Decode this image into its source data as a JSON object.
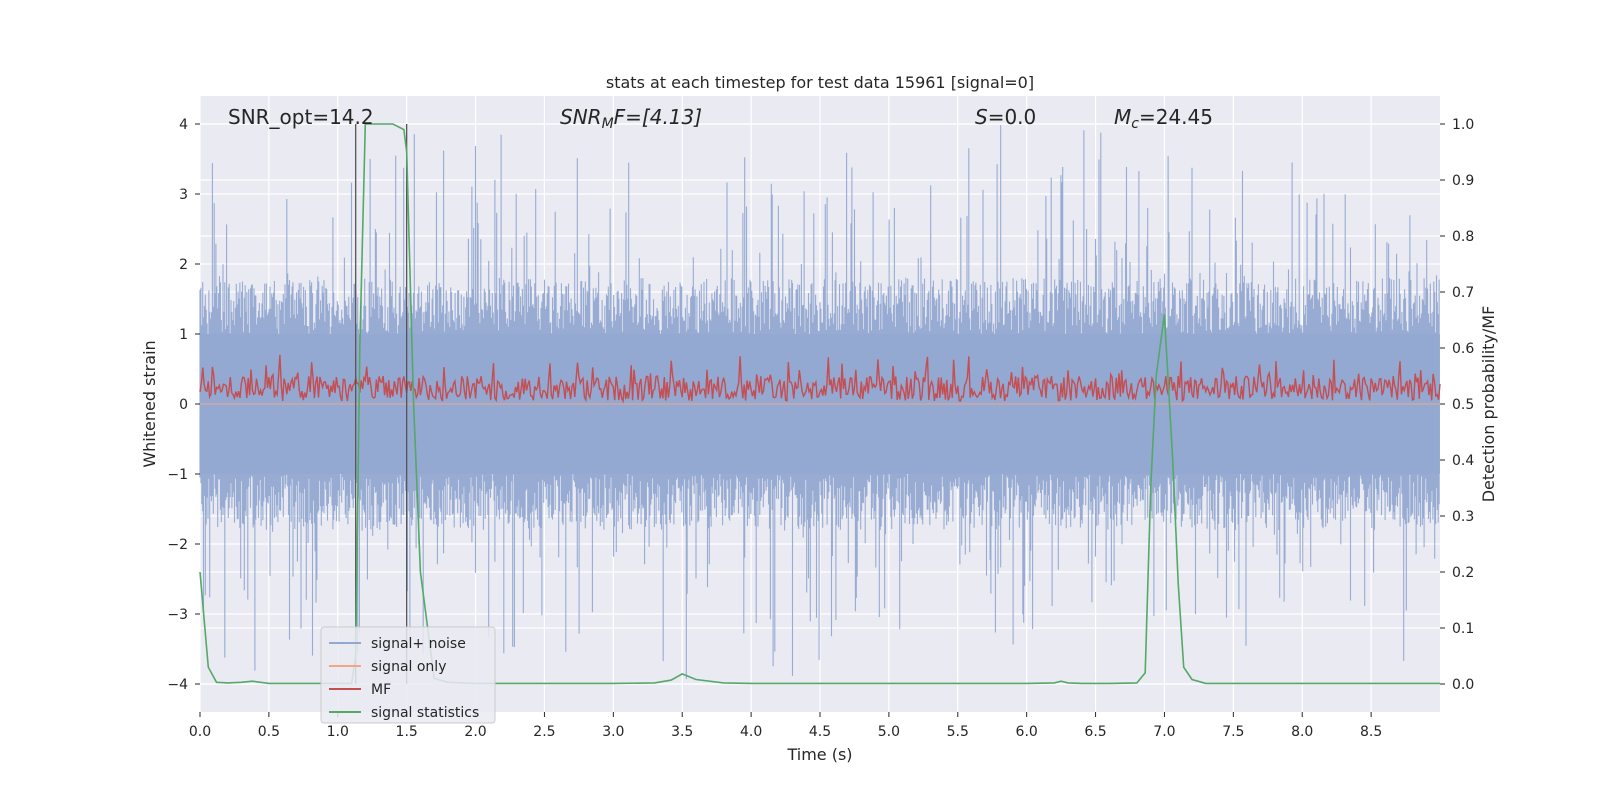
{
  "chart_data": {
    "type": "line",
    "title": "stats at each timestep for test data 15961 [signal=0]",
    "xlabel": "Time (s)",
    "ylabel": "Whitened strain",
    "ylabel_right": "Detection probability/MF",
    "xlim": [
      0.0,
      9.0
    ],
    "ylim": [
      -4.4,
      4.4
    ],
    "ylim_right": [
      -0.05,
      1.05
    ],
    "xticks": [
      "0.0",
      "0.5",
      "1.0",
      "1.5",
      "2.0",
      "2.5",
      "3.0",
      "3.5",
      "4.0",
      "4.5",
      "5.0",
      "5.5",
      "6.0",
      "6.5",
      "7.0",
      "7.5",
      "8.0",
      "8.5"
    ],
    "xtick_values": [
      0.0,
      0.5,
      1.0,
      1.5,
      2.0,
      2.5,
      3.0,
      3.5,
      4.0,
      4.5,
      5.0,
      5.5,
      6.0,
      6.5,
      7.0,
      7.5,
      8.0,
      8.5
    ],
    "yticks": [
      "4",
      "3",
      "2",
      "1",
      "0",
      "−1",
      "−2",
      "−3",
      "−4"
    ],
    "ytick_values": [
      4,
      3,
      2,
      1,
      0,
      -1,
      -2,
      -3,
      -4
    ],
    "yticks_right": [
      "1.0",
      "0.9",
      "0.8",
      "0.7",
      "0.6",
      "0.5",
      "0.4",
      "0.3",
      "0.2",
      "0.1",
      "0.0"
    ],
    "ytick_right_values": [
      1.0,
      0.9,
      0.8,
      0.7,
      0.6,
      0.5,
      0.4,
      0.3,
      0.2,
      0.1,
      0.0
    ],
    "annotations": {
      "snr_opt": "SNR_opt=14.2",
      "snr_mf_main": "SNR",
      "snr_mf_sub": "M",
      "snr_mf_rest": "F=[4.13]",
      "s_sym": "S",
      "s_val": "=0.0",
      "mc_sym": "M",
      "mc_sub": "c",
      "mc_val": "=24.45"
    },
    "vlines_x": [
      1.13,
      1.5
    ],
    "legend": {
      "placement": "lower-left",
      "entries": [
        {
          "label": "signal+ noise",
          "color": "#92a8d1"
        },
        {
          "label": "signal only",
          "color": "#f4a582"
        },
        {
          "label": "MF",
          "color": "#c44e52"
        },
        {
          "label": "signal statistics",
          "color": "#55a868"
        }
      ]
    },
    "series": [
      {
        "name": "signal+ noise",
        "axis": "left",
        "color": "#92a8d1",
        "style": "dense noise, approx ±1.6 core, peaks to ±4"
      },
      {
        "name": "signal only",
        "axis": "left",
        "color": "#f4a582",
        "x": [
          0.0,
          9.0
        ],
        "y": [
          0.0,
          0.0
        ]
      },
      {
        "name": "MF",
        "axis": "right",
        "color": "#c44e52",
        "style": "noisy band approx 0.5–0.6"
      },
      {
        "name": "signal statistics",
        "axis": "right",
        "color": "#55a868",
        "x": [
          0.0,
          0.06,
          0.12,
          0.2,
          0.3,
          0.38,
          0.5,
          0.7,
          0.9,
          1.0,
          1.1,
          1.13,
          1.16,
          1.2,
          1.3,
          1.4,
          1.48,
          1.5,
          1.55,
          1.6,
          1.7,
          1.8,
          2.0,
          2.5,
          3.0,
          3.3,
          3.42,
          3.5,
          3.6,
          3.8,
          4.0,
          5.0,
          6.0,
          6.2,
          6.25,
          6.3,
          6.4,
          6.6,
          6.8,
          6.86,
          6.9,
          6.94,
          7.0,
          7.06,
          7.1,
          7.14,
          7.2,
          7.3,
          8.0,
          9.0
        ],
        "y": [
          0.2,
          0.03,
          0.003,
          0.002,
          0.003,
          0.005,
          0.001,
          0.001,
          0.001,
          0.001,
          0.001,
          0.05,
          0.6,
          1.0,
          1.0,
          1.0,
          0.99,
          0.95,
          0.5,
          0.2,
          0.01,
          0.003,
          0.001,
          0.001,
          0.001,
          0.002,
          0.007,
          0.018,
          0.008,
          0.002,
          0.001,
          0.001,
          0.001,
          0.002,
          0.005,
          0.002,
          0.001,
          0.001,
          0.002,
          0.02,
          0.35,
          0.55,
          0.66,
          0.4,
          0.18,
          0.03,
          0.008,
          0.001,
          0.001,
          0.001
        ]
      }
    ]
  }
}
